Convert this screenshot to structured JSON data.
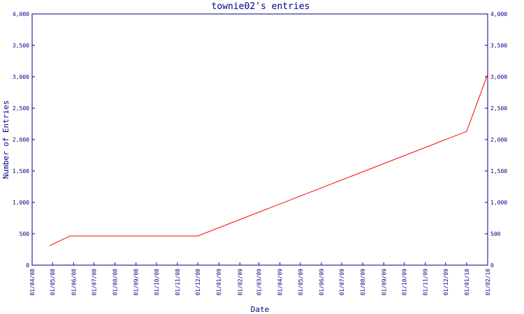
{
  "chart_data": {
    "type": "line",
    "title": "townie02's entries",
    "xlabel": "Date",
    "ylabel": "Number of Entries",
    "ylim": [
      0,
      4000
    ],
    "y_ticks": [
      0,
      500,
      1000,
      1500,
      2000,
      2500,
      3000,
      3500,
      4000
    ],
    "y_tick_labels": [
      "0",
      "500",
      "1,000",
      "1,500",
      "2,000",
      "2,500",
      "3,000",
      "3,500",
      "4,000"
    ],
    "x_range": [
      "2008-04-01",
      "2010-02-01"
    ],
    "x_tick_labels": [
      "01/04/08",
      "01/05/08",
      "01/06/08",
      "01/07/08",
      "01/08/08",
      "01/09/08",
      "01/10/08",
      "01/11/08",
      "01/12/08",
      "01/01/09",
      "01/02/09",
      "01/03/09",
      "01/04/09",
      "01/05/09",
      "01/06/09",
      "01/07/09",
      "01/08/09",
      "01/09/09",
      "01/10/09",
      "01/11/09",
      "01/12/09",
      "01/01/10",
      "01/02/10"
    ],
    "series": [
      {
        "color": "#ff0000",
        "points": [
          {
            "x": "2008-04-27",
            "y": 310
          },
          {
            "x": "2008-05-27",
            "y": 465
          },
          {
            "x": "2008-12-01",
            "y": 465
          },
          {
            "x": "2010-01-01",
            "y": 2130
          },
          {
            "x": "2010-02-01",
            "y": 3040
          }
        ]
      }
    ],
    "grid": false,
    "axis_color": "#000080"
  }
}
